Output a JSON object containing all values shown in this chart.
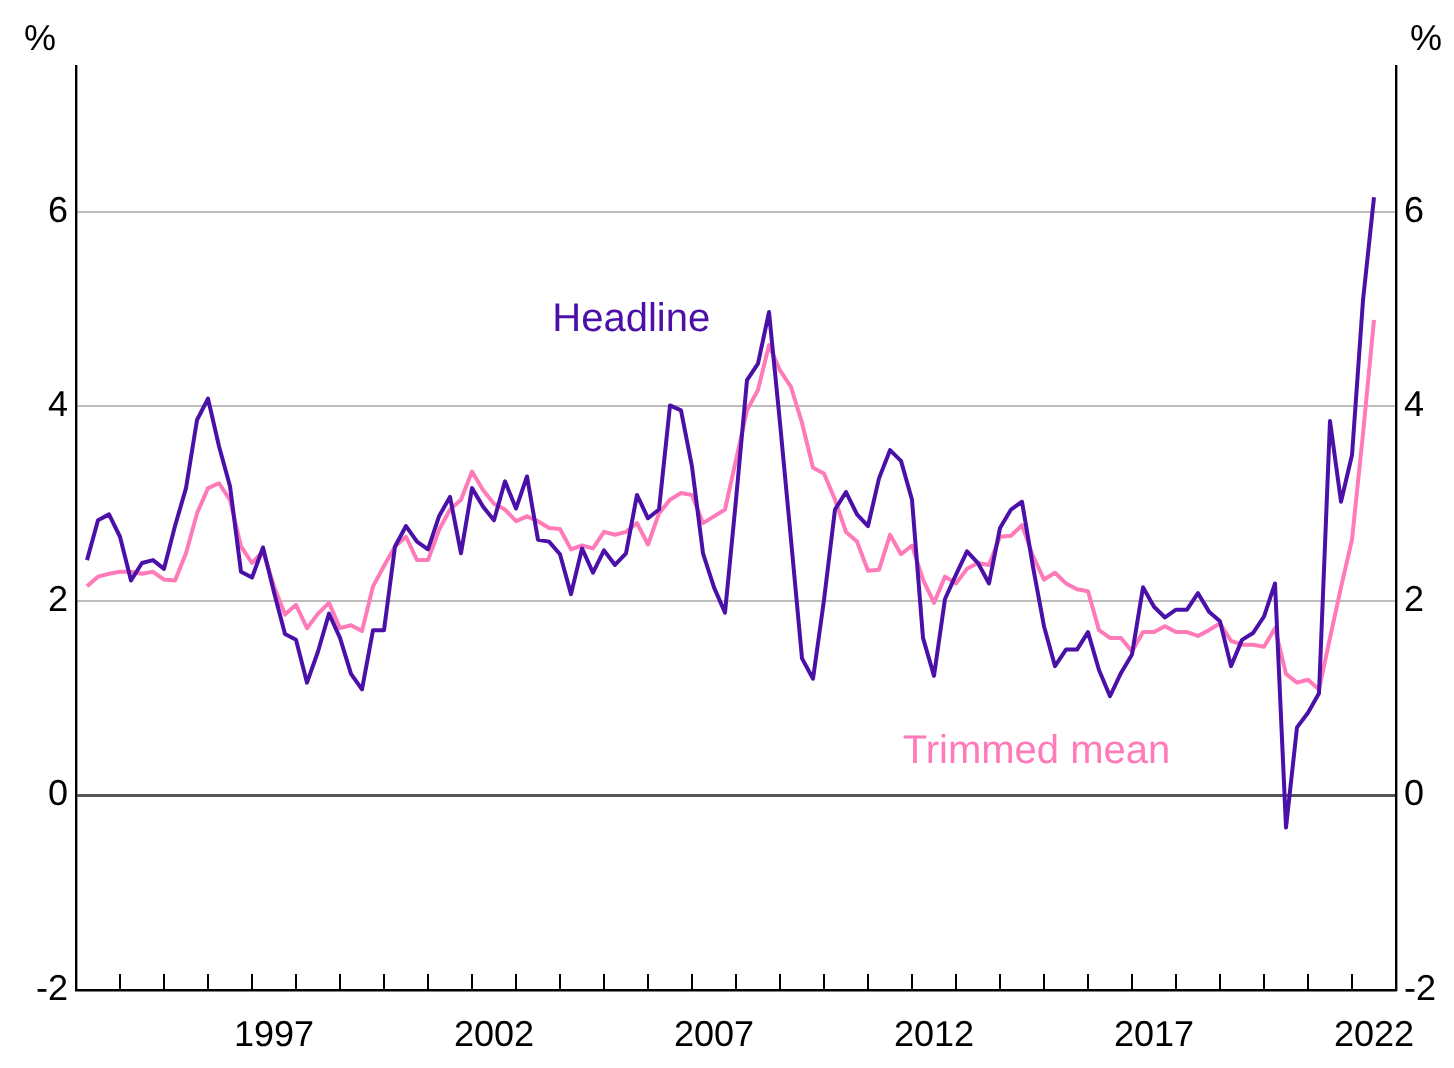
{
  "chart_data": {
    "type": "line",
    "ylabel": "%",
    "y2label": "%",
    "x": [
      1993.25,
      1993.5,
      1993.75,
      1994,
      1994.25,
      1994.5,
      1994.75,
      1995,
      1995.25,
      1995.5,
      1995.75,
      1996,
      1996.25,
      1996.5,
      1996.75,
      1997,
      1997.25,
      1997.5,
      1997.75,
      1998,
      1998.25,
      1998.5,
      1998.75,
      1999,
      1999.25,
      1999.5,
      1999.75,
      2000,
      2000.25,
      2000.5,
      2000.75,
      2001,
      2001.25,
      2001.5,
      2001.75,
      2002,
      2002.25,
      2002.5,
      2002.75,
      2003,
      2003.25,
      2003.5,
      2003.75,
      2004,
      2004.25,
      2004.5,
      2004.75,
      2005,
      2005.25,
      2005.5,
      2005.75,
      2006,
      2006.25,
      2006.5,
      2006.75,
      2007,
      2007.25,
      2007.5,
      2007.75,
      2008,
      2008.25,
      2008.5,
      2008.75,
      2009,
      2009.25,
      2009.5,
      2009.75,
      2010,
      2010.25,
      2010.5,
      2010.75,
      2011,
      2011.25,
      2011.5,
      2011.75,
      2012,
      2012.25,
      2012.5,
      2012.75,
      2013,
      2013.25,
      2013.5,
      2013.75,
      2014,
      2014.25,
      2014.5,
      2014.75,
      2015,
      2015.25,
      2015.5,
      2015.75,
      2016,
      2016.25,
      2016.5,
      2016.75,
      2017,
      2017.25,
      2017.5,
      2017.75,
      2018,
      2018.25,
      2018.5,
      2018.75,
      2019,
      2019.25,
      2019.5,
      2019.75,
      2020,
      2020.25,
      2020.5,
      2020.75,
      2021,
      2021.25,
      2021.5,
      2021.75,
      2022,
      2022.25,
      2022.5
    ],
    "series": [
      {
        "name": "Headline",
        "type": "line",
        "color": "#4a10a8",
        "values": [
          2.42,
          2.83,
          2.89,
          2.66,
          2.21,
          2.39,
          2.42,
          2.33,
          2.77,
          3.16,
          3.86,
          4.08,
          3.59,
          3.18,
          2.3,
          2.24,
          2.55,
          2.09,
          1.66,
          1.6,
          1.16,
          1.48,
          1.87,
          1.62,
          1.25,
          1.09,
          1.7,
          1.7,
          2.56,
          2.77,
          2.61,
          2.53,
          2.87,
          3.07,
          2.49,
          3.16,
          2.97,
          2.83,
          3.23,
          2.95,
          3.28,
          2.63,
          2.61,
          2.48,
          2.07,
          2.54,
          2.29,
          2.52,
          2.37,
          2.49,
          3.09,
          2.85,
          2.94,
          4.01,
          3.96,
          3.38,
          2.49,
          2.14,
          1.88,
          3.04,
          4.27,
          4.44,
          4.97,
          3.83,
          2.63,
          1.41,
          1.2,
          2.01,
          2.94,
          3.12,
          2.89,
          2.77,
          3.26,
          3.55,
          3.44,
          3.04,
          1.62,
          1.23,
          2.02,
          2.27,
          2.51,
          2.39,
          2.18,
          2.75,
          2.94,
          3.02,
          2.35,
          1.74,
          1.33,
          1.5,
          1.5,
          1.68,
          1.29,
          1.02,
          1.26,
          1.45,
          2.14,
          1.94,
          1.83,
          1.91,
          1.91,
          2.08,
          1.89,
          1.79,
          1.33,
          1.6,
          1.67,
          1.84,
          2.18,
          -0.33,
          0.7,
          0.85,
          1.05,
          3.85,
          3.02,
          3.5,
          5.09,
          6.15
        ]
      },
      {
        "name": "Trimmed mean",
        "type": "line",
        "color": "#ff7ab8",
        "values": [
          2.15,
          2.25,
          2.28,
          2.3,
          2.3,
          2.28,
          2.3,
          2.22,
          2.21,
          2.49,
          2.9,
          3.16,
          3.21,
          3.04,
          2.56,
          2.39,
          2.51,
          2.15,
          1.86,
          1.96,
          1.72,
          1.87,
          1.98,
          1.72,
          1.75,
          1.69,
          2.15,
          2.36,
          2.56,
          2.66,
          2.42,
          2.42,
          2.73,
          2.94,
          3.04,
          3.33,
          3.14,
          3.0,
          2.94,
          2.82,
          2.87,
          2.82,
          2.75,
          2.74,
          2.53,
          2.57,
          2.54,
          2.71,
          2.68,
          2.71,
          2.8,
          2.58,
          2.9,
          3.04,
          3.11,
          3.09,
          2.8,
          2.87,
          2.94,
          3.45,
          3.96,
          4.17,
          4.63,
          4.37,
          4.2,
          3.83,
          3.37,
          3.31,
          3.04,
          2.71,
          2.61,
          2.31,
          2.32,
          2.68,
          2.48,
          2.57,
          2.22,
          1.98,
          2.25,
          2.18,
          2.33,
          2.39,
          2.37,
          2.66,
          2.67,
          2.78,
          2.46,
          2.22,
          2.29,
          2.18,
          2.12,
          2.1,
          1.7,
          1.62,
          1.62,
          1.48,
          1.68,
          1.68,
          1.74,
          1.68,
          1.68,
          1.64,
          1.7,
          1.77,
          1.59,
          1.55,
          1.55,
          1.53,
          1.72,
          1.25,
          1.16,
          1.19,
          1.09,
          1.62,
          2.14,
          2.63,
          3.72,
          4.89
        ]
      }
    ],
    "xlim": [
      1993,
      2023
    ],
    "xticks": [
      {
        "value": 1994,
        "label": null
      },
      {
        "value": 1995,
        "label": null
      },
      {
        "value": 1996,
        "label": null
      },
      {
        "value": 1997,
        "label": null
      },
      {
        "value": 1997.5,
        "label": "1997"
      },
      {
        "value": 1998,
        "label": null
      },
      {
        "value": 1999,
        "label": null
      },
      {
        "value": 2000,
        "label": null
      },
      {
        "value": 2001,
        "label": null
      },
      {
        "value": 2002,
        "label": null
      },
      {
        "value": 2002.5,
        "label": "2002"
      },
      {
        "value": 2003,
        "label": null
      },
      {
        "value": 2004,
        "label": null
      },
      {
        "value": 2005,
        "label": null
      },
      {
        "value": 2006,
        "label": null
      },
      {
        "value": 2007,
        "label": null
      },
      {
        "value": 2007.5,
        "label": "2007"
      },
      {
        "value": 2008,
        "label": null
      },
      {
        "value": 2009,
        "label": null
      },
      {
        "value": 2010,
        "label": null
      },
      {
        "value": 2011,
        "label": null
      },
      {
        "value": 2012,
        "label": null
      },
      {
        "value": 2012.5,
        "label": "2012"
      },
      {
        "value": 2013,
        "label": null
      },
      {
        "value": 2014,
        "label": null
      },
      {
        "value": 2015,
        "label": null
      },
      {
        "value": 2016,
        "label": null
      },
      {
        "value": 2017,
        "label": null
      },
      {
        "value": 2017.5,
        "label": "2017"
      },
      {
        "value": 2018,
        "label": null
      },
      {
        "value": 2019,
        "label": null
      },
      {
        "value": 2020,
        "label": null
      },
      {
        "value": 2021,
        "label": null
      },
      {
        "value": 2022,
        "label": null
      },
      {
        "value": 2022.5,
        "label": "2022"
      }
    ],
    "ylim": [
      -2,
      7.5
    ],
    "yticks": [
      -2,
      0,
      2,
      4,
      6
    ],
    "y2lim": [
      -2,
      7.5
    ],
    "y2ticks": [
      -2,
      0,
      2,
      4,
      6
    ],
    "grid": "y",
    "legend": false,
    "marker": "none",
    "line_style": "solid"
  }
}
